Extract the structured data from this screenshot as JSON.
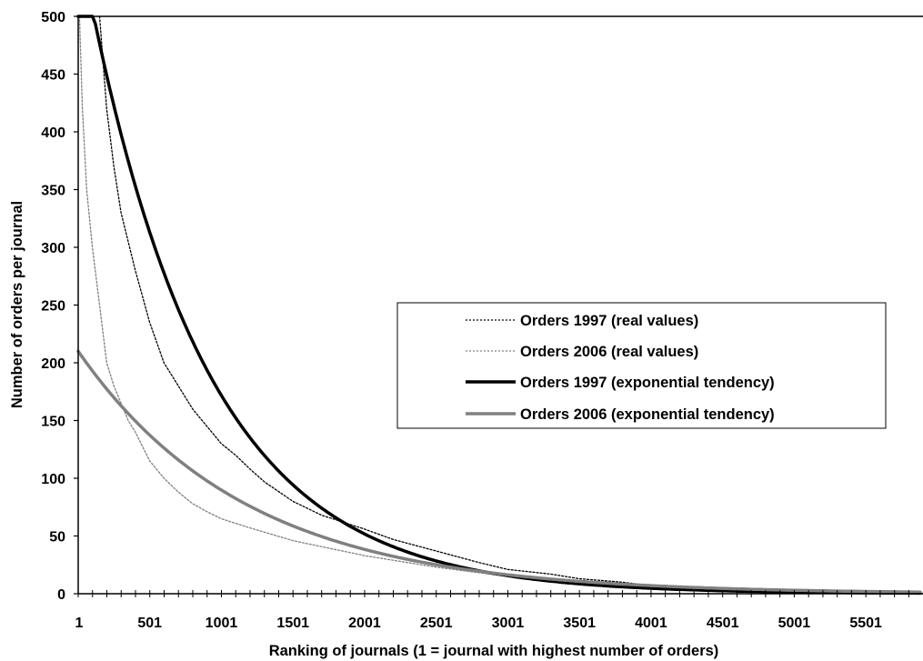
{
  "chart_data": {
    "type": "line",
    "xlabel": "Ranking of journals (1 = journal with highest number of orders)",
    "ylabel": "Number of orders per journal",
    "xlim": [
      1,
      5900
    ],
    "ylim": [
      0,
      500
    ],
    "x_ticks": [
      "1",
      "501",
      "1001",
      "1501",
      "2001",
      "2501",
      "3001",
      "3501",
      "4001",
      "4501",
      "5001",
      "5501"
    ],
    "y_ticks": [
      "0",
      "50",
      "100",
      "150",
      "200",
      "250",
      "300",
      "350",
      "400",
      "450",
      "500"
    ],
    "grid": false,
    "legend_position": "center-right",
    "series": [
      {
        "name": "Orders 1997 (real values)",
        "style": "dotted",
        "color": "#000000",
        "x": [
          150,
          200,
          250,
          300,
          400,
          500,
          600,
          700,
          800,
          900,
          1000,
          1100,
          1200,
          1300,
          1500,
          1700,
          2000,
          2200,
          2500,
          2800,
          3000,
          3300,
          3500,
          3800,
          4000,
          4500,
          5000,
          5500,
          5900
        ],
        "y": [
          500,
          420,
          370,
          330,
          280,
          235,
          200,
          180,
          160,
          145,
          130,
          120,
          108,
          97,
          80,
          68,
          56,
          47,
          37,
          27,
          21,
          17,
          13,
          10,
          7,
          4,
          2,
          1,
          0
        ]
      },
      {
        "name": "Orders 2006 (real values)",
        "style": "dotted",
        "color": "#808080",
        "x": [
          10,
          30,
          60,
          100,
          150,
          200,
          250,
          300,
          350,
          400,
          500,
          600,
          700,
          800,
          900,
          1000,
          1200,
          1500,
          2000,
          2500,
          3000,
          3500,
          4000,
          4500,
          5000,
          5500,
          5900
        ],
        "y": [
          500,
          420,
          350,
          300,
          250,
          200,
          180,
          165,
          150,
          140,
          115,
          100,
          88,
          78,
          71,
          65,
          57,
          46,
          33,
          23,
          15,
          10,
          6,
          3,
          2,
          1,
          0
        ]
      },
      {
        "name": "Orders 1997 (exponential tendency)",
        "style": "solid-thick",
        "color": "#000000",
        "a": 570,
        "b": 0.0012,
        "x_start": 1,
        "x_end": 5900
      },
      {
        "name": "Orders 2006 (exponential tendency)",
        "style": "solid-thick",
        "color": "#808080",
        "a": 210,
        "b": 0.00085,
        "x_start": 1,
        "x_end": 5900
      }
    ]
  },
  "legend": {
    "items": [
      "Orders 1997 (real values)",
      "Orders 2006 (real values)",
      "Orders 1997 (exponential tendency)",
      "Orders 2006 (exponential tendency)"
    ]
  }
}
